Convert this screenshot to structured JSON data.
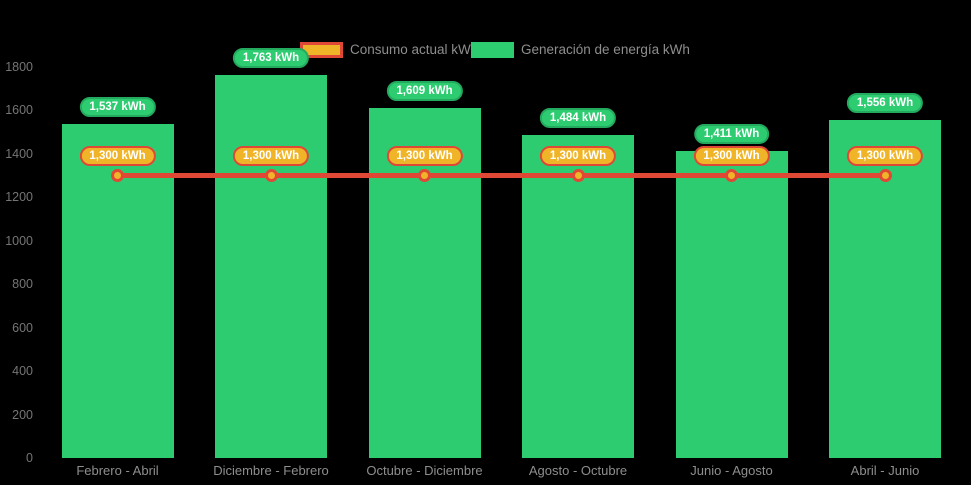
{
  "colors": {
    "background": "#000000",
    "bar_green": "#2ecc71",
    "bar_pill_border": "#24aa5e",
    "line_red": "#e04836",
    "marker_yellow": "#f0b429",
    "axis_text": "#757575",
    "label_text": "#8e8e8e"
  },
  "legend": {
    "items": [
      {
        "label": "Consumo actual kWh",
        "swatch": "yellow-fill-red-border"
      },
      {
        "label": "Generación de energía kWh",
        "swatch": "green-fill"
      }
    ]
  },
  "chart_data": {
    "type": "bar",
    "title": "",
    "xlabel": "",
    "ylabel": "",
    "categories": [
      "Febrero - Abril",
      "Diciembre - Febrero",
      "Octubre - Diciembre",
      "Agosto - Octubre",
      "Junio - Agosto",
      "Abril - Junio"
    ],
    "series": [
      {
        "name": "Generación de energía kWh",
        "type": "bar",
        "values": [
          1537,
          1763,
          1609,
          1484,
          1411,
          1556
        ],
        "value_labels": [
          "1,537 kWh",
          "1,763 kWh",
          "1,609 kWh",
          "1,484 kWh",
          "1,411 kWh",
          "1,556 kWh"
        ],
        "color": "#2ecc71"
      },
      {
        "name": "Consumo actual kWh",
        "type": "line",
        "values": [
          1300,
          1300,
          1300,
          1300,
          1300,
          1300
        ],
        "value_labels": [
          "1,300 kWh",
          "1,300 kWh",
          "1,300 kWh",
          "1,300 kWh",
          "1,300 kWh",
          "1,300 kWh"
        ],
        "color": "#e04836",
        "marker_color": "#f0b429"
      }
    ],
    "ylim": [
      0,
      1800
    ],
    "yticks": [
      "0",
      "200",
      "400",
      "600",
      "800",
      "1000",
      "1200",
      "1400",
      "1600",
      "1800"
    ],
    "grid": false,
    "legend_position": "top"
  }
}
